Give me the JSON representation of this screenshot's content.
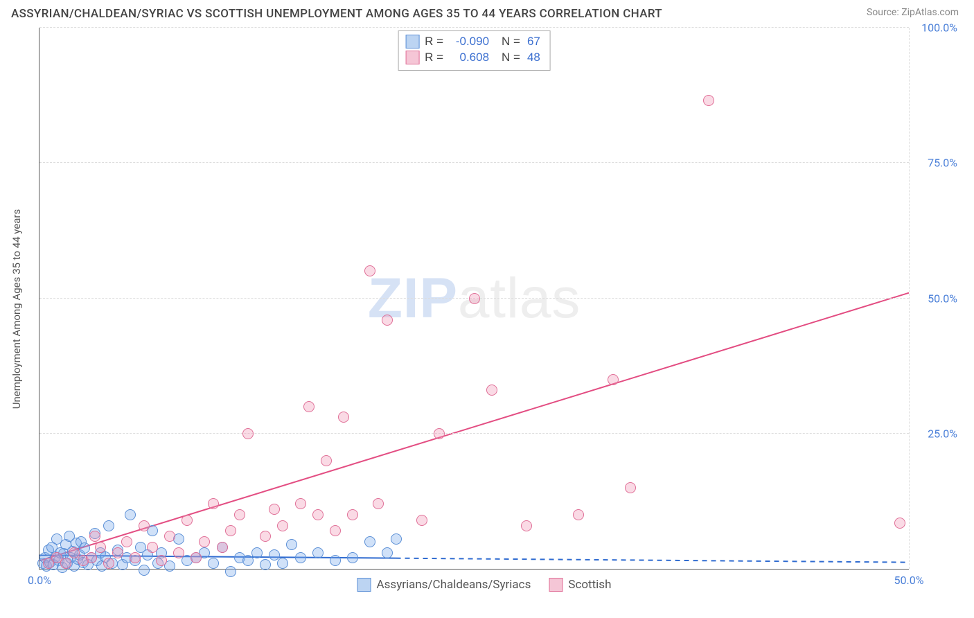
{
  "title": "ASSYRIAN/CHALDEAN/SYRIAC VS SCOTTISH UNEMPLOYMENT AMONG AGES 35 TO 44 YEARS CORRELATION CHART",
  "source_label": "Source: ZipAtlas.com",
  "ylabel": "Unemployment Among Ages 35 to 44 years",
  "watermark": {
    "bold": "ZIP",
    "rest": "atlas"
  },
  "chart": {
    "type": "scatter-with-trend",
    "xlim": [
      0,
      50
    ],
    "ylim": [
      0,
      100
    ],
    "yticks": [
      25,
      50,
      75,
      100
    ],
    "ytick_labels": [
      "25.0%",
      "50.0%",
      "75.0%",
      "100.0%"
    ],
    "xticks": [
      0,
      50
    ],
    "xtick_labels": [
      "0.0%",
      "50.0%"
    ],
    "background": "#ffffff",
    "grid_color": "#dddddd",
    "axis_color": "#555555",
    "tick_label_color": "#4a7fd8",
    "tick_fontsize": 16,
    "marker_radius": 8,
    "marker_stroke_width": 1.5,
    "series": [
      {
        "key": "assyrian",
        "legend_label": "Assyrians/Chaldeans/Syriacs",
        "fill": "rgba(120,170,235,0.35)",
        "stroke": "#5b8fd6",
        "swatch_fill": "#bcd4f2",
        "swatch_border": "#5b8fd6",
        "R": "-0.090",
        "N": "67",
        "trend": {
          "y_at_x0": 2.5,
          "y_at_x50": 1.2,
          "solid_until_x": 20.5,
          "color": "#2f6bd0",
          "width": 2
        },
        "points": [
          [
            0.2,
            1.0
          ],
          [
            0.3,
            2.0
          ],
          [
            0.4,
            0.5
          ],
          [
            0.5,
            3.5
          ],
          [
            0.6,
            1.2
          ],
          [
            0.7,
            4.0
          ],
          [
            0.8,
            0.8
          ],
          [
            0.9,
            2.2
          ],
          [
            1.0,
            5.5
          ],
          [
            1.1,
            1.5
          ],
          [
            1.2,
            3.0
          ],
          [
            1.3,
            0.3
          ],
          [
            1.4,
            2.8
          ],
          [
            1.5,
            4.5
          ],
          [
            1.6,
            1.0
          ],
          [
            1.7,
            6.0
          ],
          [
            1.8,
            2.0
          ],
          [
            1.9,
            3.2
          ],
          [
            2.0,
            0.5
          ],
          [
            2.1,
            4.8
          ],
          [
            2.2,
            1.8
          ],
          [
            2.3,
            2.5
          ],
          [
            2.4,
            5.0
          ],
          [
            2.5,
            1.2
          ],
          [
            2.6,
            3.8
          ],
          [
            2.8,
            0.8
          ],
          [
            3.0,
            2.0
          ],
          [
            3.2,
            6.5
          ],
          [
            3.3,
            1.5
          ],
          [
            3.5,
            3.0
          ],
          [
            3.6,
            0.5
          ],
          [
            3.8,
            2.2
          ],
          [
            4.0,
            8.0
          ],
          [
            4.2,
            1.0
          ],
          [
            4.5,
            3.5
          ],
          [
            4.8,
            0.8
          ],
          [
            5.0,
            2.0
          ],
          [
            5.2,
            10.0
          ],
          [
            5.5,
            1.5
          ],
          [
            5.8,
            4.0
          ],
          [
            6.0,
            -0.3
          ],
          [
            6.2,
            2.5
          ],
          [
            6.5,
            7.0
          ],
          [
            6.8,
            1.0
          ],
          [
            7.0,
            3.0
          ],
          [
            7.5,
            0.5
          ],
          [
            8.0,
            5.5
          ],
          [
            8.5,
            1.5
          ],
          [
            9.0,
            2.0
          ],
          [
            9.5,
            3.0
          ],
          [
            10.0,
            1.0
          ],
          [
            10.5,
            4.0
          ],
          [
            11.0,
            -0.5
          ],
          [
            11.5,
            2.0
          ],
          [
            12.0,
            1.5
          ],
          [
            12.5,
            3.0
          ],
          [
            13.0,
            0.8
          ],
          [
            13.5,
            2.5
          ],
          [
            14.0,
            1.0
          ],
          [
            14.5,
            4.5
          ],
          [
            15.0,
            2.0
          ],
          [
            16.0,
            3.0
          ],
          [
            17.0,
            1.5
          ],
          [
            18.0,
            2.0
          ],
          [
            19.0,
            5.0
          ],
          [
            20.0,
            3.0
          ],
          [
            20.5,
            5.5
          ]
        ]
      },
      {
        "key": "scottish",
        "legend_label": "Scottish",
        "fill": "rgba(240,150,180,0.35)",
        "stroke": "#e06f97",
        "swatch_fill": "#f5c6d6",
        "swatch_border": "#e06f97",
        "R": "0.608",
        "N": "48",
        "trend": {
          "y_at_x0": 1.5,
          "y_at_x50": 51.0,
          "solid_until_x": 50,
          "color": "#e34d82",
          "width": 2
        },
        "points": [
          [
            0.5,
            1.0
          ],
          [
            1.0,
            2.0
          ],
          [
            1.5,
            1.0
          ],
          [
            2.0,
            3.0
          ],
          [
            2.5,
            1.5
          ],
          [
            3.0,
            2.0
          ],
          [
            3.2,
            6.0
          ],
          [
            3.5,
            4.0
          ],
          [
            4.0,
            1.0
          ],
          [
            4.5,
            3.0
          ],
          [
            5.0,
            5.0
          ],
          [
            5.5,
            2.0
          ],
          [
            6.0,
            8.0
          ],
          [
            6.5,
            4.0
          ],
          [
            7.0,
            1.5
          ],
          [
            7.5,
            6.0
          ],
          [
            8.0,
            3.0
          ],
          [
            8.5,
            9.0
          ],
          [
            9.0,
            2.0
          ],
          [
            9.5,
            5.0
          ],
          [
            10.0,
            12.0
          ],
          [
            10.5,
            4.0
          ],
          [
            11.0,
            7.0
          ],
          [
            11.5,
            10.0
          ],
          [
            12.0,
            25.0
          ],
          [
            13.0,
            6.0
          ],
          [
            13.5,
            11.0
          ],
          [
            14.0,
            8.0
          ],
          [
            15.0,
            12.0
          ],
          [
            15.5,
            30.0
          ],
          [
            16.0,
            10.0
          ],
          [
            16.5,
            20.0
          ],
          [
            17.0,
            7.0
          ],
          [
            17.5,
            28.0
          ],
          [
            18.0,
            10.0
          ],
          [
            19.0,
            55.0
          ],
          [
            19.5,
            12.0
          ],
          [
            20.0,
            46.0
          ],
          [
            22.0,
            9.0
          ],
          [
            23.0,
            25.0
          ],
          [
            25.0,
            50.0
          ],
          [
            26.0,
            33.0
          ],
          [
            28.0,
            8.0
          ],
          [
            31.0,
            10.0
          ],
          [
            33.0,
            35.0
          ],
          [
            34.0,
            15.0
          ],
          [
            38.5,
            86.5
          ],
          [
            49.5,
            8.5
          ]
        ]
      }
    ],
    "statbox": {
      "labels": {
        "R": "R",
        "N": "N",
        "eq": "="
      }
    }
  }
}
